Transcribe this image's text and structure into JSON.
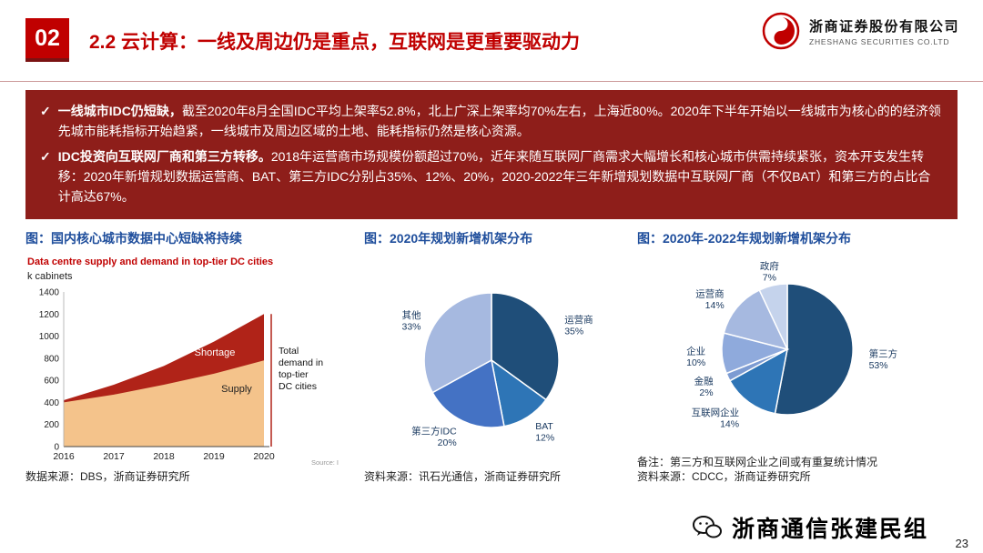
{
  "colors": {
    "accent_red": "#C00000",
    "panel_bg": "#8E1E1A",
    "chart_title_blue": "#1F4E9C",
    "pie_label_blue": "#17375E"
  },
  "page": {
    "section_number": "02",
    "title": "2.2 云计算：一线及周边仍是重点，互联网是更重要驱动力",
    "page_number": "23"
  },
  "logo": {
    "company_cn": "浙商证券股份有限公司",
    "company_en": "ZHESHANG SECURITIES CO.LTD"
  },
  "panel": {
    "bullet_char": "✓",
    "items": [
      {
        "lead": "一线城市IDC仍短缺，",
        "text": "截至2020年8月全国IDC平均上架率52.8%，北上广深上架率均70%左右，上海近80%。2020年下半年开始以一线城市为核心的的经济领先城市能耗指标开始趋紧，一线城市及周边区域的土地、能耗指标仍然是核心资源。"
      },
      {
        "lead": "IDC投资向互联网厂商和第三方转移。",
        "text": "2018年运营商市场规模份额超过70%，近年来随互联网厂商需求大幅增长和核心城市供需持续紧张，资本开支发生转移：2020年新增规划数据运营商、BAT、第三方IDC分别占35%、12%、20%，2020-2022年三年新增规划数据中互联网厂商（不仅BAT）和第三方的占比合计高达67%。"
      }
    ]
  },
  "chart_data": [
    {
      "type": "area",
      "title": "图：国内核心城市数据中心短缺将持续",
      "subtitle": "Data centre supply and demand in top-tier DC cities",
      "ylabel": "k cabinets",
      "x": [
        2016,
        2017,
        2018,
        2019,
        2020
      ],
      "series": [
        {
          "name": "Supply",
          "values": [
            400,
            470,
            560,
            660,
            780
          ],
          "color": "#F4C38B"
        },
        {
          "name": "Total demand",
          "values": [
            420,
            560,
            730,
            950,
            1200
          ],
          "color": "#B02318"
        }
      ],
      "ylim": [
        0,
        1400
      ],
      "ytick_step": 200,
      "labels": {
        "shortage": "Shortage",
        "supply": "Supply",
        "total_demand_lines": [
          "Total",
          "demand in",
          "top-tier",
          "DC cities"
        ]
      },
      "source_inline": "Source: I",
      "source": "数据来源：DBS，浙商证券研究所"
    },
    {
      "type": "pie",
      "title": "图：2020年规划新增机架分布",
      "slices": [
        {
          "label": "运营商",
          "value": 35,
          "color": "#1F4E79"
        },
        {
          "label": "BAT",
          "value": 12,
          "color": "#2E75B6"
        },
        {
          "label": "第三方IDC",
          "value": 20,
          "color": "#4472C4"
        },
        {
          "label": "其他",
          "value": 33,
          "color": "#A6B9E0"
        }
      ],
      "source": "资料来源：讯石光通信，浙商证券研究所"
    },
    {
      "type": "pie",
      "title": "图：2020年-2022年规划新增机架分布",
      "slices": [
        {
          "label": "第三方",
          "value": 53,
          "color": "#1F4E79"
        },
        {
          "label": "互联网企业",
          "value": 14,
          "color": "#2E75B6"
        },
        {
          "label": "金融",
          "value": 2,
          "color": "#7C9BD2"
        },
        {
          "label": "企业",
          "value": 10,
          "color": "#8FAADC"
        },
        {
          "label": "运营商",
          "value": 14,
          "color": "#A6B9E0"
        },
        {
          "label": "政府",
          "value": 7,
          "color": "#C5D3EC"
        }
      ],
      "note": "备注：第三方和互联网企业之间或有重复统计情况",
      "source": "资料来源：CDCC，浙商证券研究所"
    }
  ],
  "footer": {
    "wechat_label": "浙商通信张建民组"
  }
}
